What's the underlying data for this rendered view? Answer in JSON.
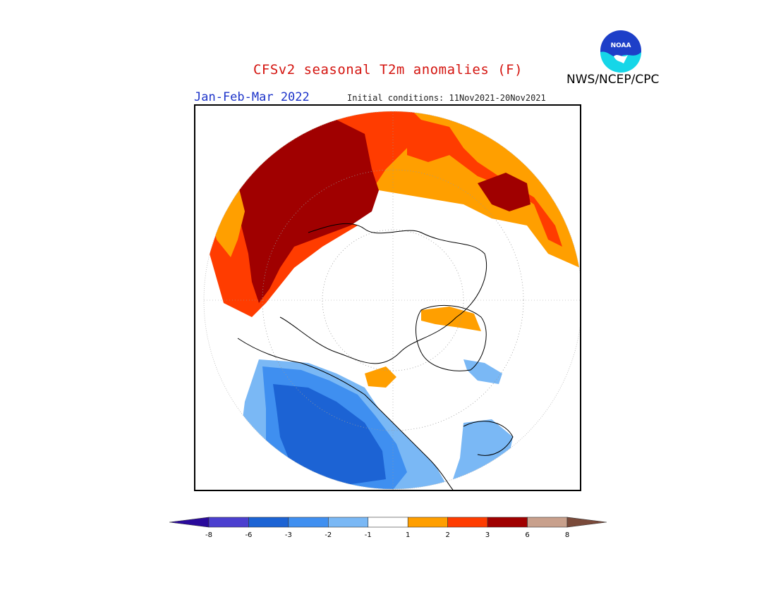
{
  "header": {
    "title": "CFSv2 seasonal T2m anomalies (F)",
    "period": "Jan-Feb-Mar 2022",
    "initial_conditions": "Initial conditions: 11Nov2021-20Nov2021",
    "agency": "NWS/NCEP/CPC",
    "logo_text": "NOAA"
  },
  "colorbar": {
    "colors": [
      "#2a0a9c",
      "#4b3fcf",
      "#1c63d4",
      "#3f8ff0",
      "#7ab8f5",
      "#ffffff",
      "#ff9f00",
      "#ff3c00",
      "#a00000",
      "#c8a08c",
      "#7a4a3a"
    ],
    "ticks": [
      "-8",
      "-6",
      "-3",
      "-2",
      "-1",
      "1",
      "2",
      "3",
      "6",
      "8"
    ]
  }
}
